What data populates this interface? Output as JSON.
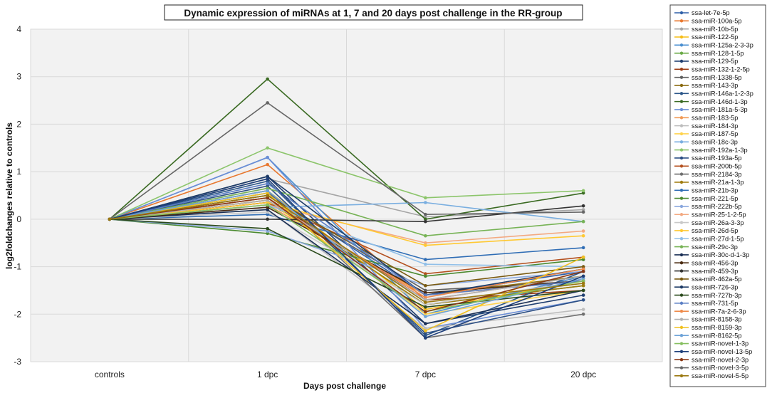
{
  "chart_data": {
    "type": "line",
    "title": "Dynamic expression of miRNAs at 1, 7 and 20 days post challenge in the RR-group",
    "xlabel": "Days post challenge",
    "ylabel": "log2foldchanges relative to controls",
    "categories": [
      "controls",
      "1 dpc",
      "7 dpc",
      "20 dpc"
    ],
    "ylim": [
      -3,
      4
    ],
    "yticks": [
      -3,
      -2,
      -1,
      0,
      1,
      2,
      3,
      4
    ],
    "grid": true,
    "legend_position": "right",
    "series": [
      {
        "name": "ssa-let-7e-5p",
        "color": "#2e5fa8",
        "values": [
          0,
          0.55,
          -1.6,
          -1.1
        ]
      },
      {
        "name": "ssa-miR-100a-5p",
        "color": "#e8782f",
        "values": [
          0,
          1.15,
          -1.7,
          -1.2
        ]
      },
      {
        "name": "ssa-miR-10b-5p",
        "color": "#a5a5a5",
        "values": [
          0,
          0.85,
          0.05,
          0.2
        ]
      },
      {
        "name": "ssa-miR-122-5p",
        "color": "#f6bd16",
        "values": [
          0,
          0.6,
          -1.9,
          -1.3
        ]
      },
      {
        "name": "ssa-miR-125a-2-3-3p",
        "color": "#4a8fd0",
        "values": [
          0,
          1.3,
          -2.0,
          -1.2
        ]
      },
      {
        "name": "ssa-miR-128-1-5p",
        "color": "#6aaa46",
        "values": [
          0,
          0.4,
          -1.8,
          -1.4
        ]
      },
      {
        "name": "ssa-miR-129-5p",
        "color": "#1f3e70",
        "values": [
          0,
          0.9,
          -2.2,
          -1.6
        ]
      },
      {
        "name": "ssa-miR-132-1-2-5p",
        "color": "#9c3b12",
        "values": [
          0,
          0.45,
          -1.7,
          -1.5
        ]
      },
      {
        "name": "ssa-miR-1338-5p",
        "color": "#5f5f5f",
        "values": [
          0,
          0.5,
          -1.5,
          -1.3
        ]
      },
      {
        "name": "ssa-miR-143-3p",
        "color": "#8a6a0f",
        "values": [
          0,
          0.35,
          -1.6,
          -1.2
        ]
      },
      {
        "name": "ssa-miR-146a-1-2-3p",
        "color": "#2a5588",
        "values": [
          0,
          0.8,
          -2.45,
          -1.1
        ]
      },
      {
        "name": "ssa-miR-146d-1-3p",
        "color": "#3a6a22",
        "values": [
          0,
          2.95,
          0.0,
          0.55
        ]
      },
      {
        "name": "ssa-miR-181a-5-3p",
        "color": "#6b8ed6",
        "values": [
          0,
          1.3,
          -2.3,
          -1.7
        ]
      },
      {
        "name": "ssa-miR-183-5p",
        "color": "#f19a56",
        "values": [
          0,
          0.3,
          -1.6,
          -1.3
        ]
      },
      {
        "name": "ssa-miR-184-3p",
        "color": "#bdbdbd",
        "values": [
          0,
          0.2,
          -2.3,
          -1.9
        ]
      },
      {
        "name": "ssa-miR-187-5p",
        "color": "#ffd34d",
        "values": [
          0,
          0.4,
          -2.0,
          -1.5
        ]
      },
      {
        "name": "ssa-miR-18c-3p",
        "color": "#79aee0",
        "values": [
          0,
          0.25,
          0.35,
          -0.05
        ]
      },
      {
        "name": "ssa-miR-192a-1-3p",
        "color": "#8cc56b",
        "values": [
          0,
          1.5,
          0.45,
          0.6
        ]
      },
      {
        "name": "ssa-miR-193a-5p",
        "color": "#2c4f85",
        "values": [
          0,
          0.7,
          -2.4,
          -1.7
        ]
      },
      {
        "name": "ssa-miR-200b-5p",
        "color": "#b4501f",
        "values": [
          0,
          0.35,
          -1.15,
          -0.8
        ]
      },
      {
        "name": "ssa-miR-2184-3p",
        "color": "#6e6e6e",
        "values": [
          0,
          0.6,
          -2.5,
          -2.0
        ]
      },
      {
        "name": "ssa-miR-21a-1-3p",
        "color": "#a07d10",
        "values": [
          0,
          0.4,
          -1.8,
          -1.4
        ]
      },
      {
        "name": "ssa-miR-21b-3p",
        "color": "#2f6db5",
        "values": [
          0,
          0.1,
          -0.85,
          -0.6
        ]
      },
      {
        "name": "ssa-miR-221-5p",
        "color": "#4b8a30",
        "values": [
          0,
          -0.3,
          -1.2,
          -0.85
        ]
      },
      {
        "name": "ssa-miR-222b-5p",
        "color": "#8aa8de",
        "values": [
          0,
          -0.25,
          -1.4,
          -1.1
        ]
      },
      {
        "name": "ssa-miR-25-1-2-5p",
        "color": "#f3a981",
        "values": [
          0,
          0.3,
          -0.5,
          -0.25
        ]
      },
      {
        "name": "ssa-miR-26a-3-3p",
        "color": "#c8c8c8",
        "values": [
          0,
          0.15,
          -1.8,
          -1.3
        ]
      },
      {
        "name": "ssa-miR-26d-5p",
        "color": "#ffc933",
        "values": [
          0,
          0.35,
          -0.55,
          -0.35
        ]
      },
      {
        "name": "ssa-miR-27d-1-5p",
        "color": "#90bfe8",
        "values": [
          0,
          0.3,
          -0.95,
          -1.0
        ]
      },
      {
        "name": "ssa-miR-29c-3p",
        "color": "#77b356",
        "values": [
          0,
          0.65,
          -0.35,
          -0.05
        ]
      },
      {
        "name": "ssa-miR-30c-d-1-3p",
        "color": "#1a2f55",
        "values": [
          0,
          0.2,
          -2.2,
          -1.5
        ]
      },
      {
        "name": "ssa-miR-456-3p",
        "color": "#4a2a10",
        "values": [
          0,
          0.25,
          -1.55,
          -1.3
        ]
      },
      {
        "name": "ssa-miR-459-3p",
        "color": "#333333",
        "values": [
          0,
          0.0,
          -0.05,
          0.28
        ]
      },
      {
        "name": "ssa-miR-462a-5p",
        "color": "#7a5a10",
        "values": [
          0,
          0.5,
          -1.4,
          -1.0
        ]
      },
      {
        "name": "ssa-miR-726-3p",
        "color": "#1d3b66",
        "values": [
          0,
          0.9,
          -1.6,
          -1.05
        ]
      },
      {
        "name": "ssa-miR-727b-3p",
        "color": "#2a4a1c",
        "values": [
          0,
          -0.2,
          -1.85,
          -1.5
        ]
      },
      {
        "name": "ssa-miR-731-5p",
        "color": "#5a7ec4",
        "values": [
          0,
          0.75,
          -1.6,
          -1.3
        ]
      },
      {
        "name": "ssa-miR-7a-2-6-3p",
        "color": "#ee8a4a",
        "values": [
          0,
          0.4,
          -1.65,
          -1.05
        ]
      },
      {
        "name": "ssa-miR-8158-3p",
        "color": "#b0b0b0",
        "values": [
          0,
          0.4,
          -1.7,
          -1.2
        ]
      },
      {
        "name": "ssa-miR-8159-3p",
        "color": "#f0c020",
        "values": [
          0,
          0.55,
          -2.35,
          -0.8
        ]
      },
      {
        "name": "ssa-miR-8162-5p",
        "color": "#6ea3d8",
        "values": [
          0,
          0.6,
          -2.05,
          -1.25
        ]
      },
      {
        "name": "ssa-miR-novel-1-3p",
        "color": "#86bf60",
        "values": [
          0,
          0.3,
          -1.95,
          -1.3
        ]
      },
      {
        "name": "ssa-miR-novel-13-5p",
        "color": "#1e3f7a",
        "values": [
          0,
          0.85,
          -2.5,
          -1.2
        ]
      },
      {
        "name": "ssa-miR-novel-2-3p",
        "color": "#8a3814",
        "values": [
          0,
          0.45,
          -1.95,
          -1.1
        ]
      },
      {
        "name": "ssa-miR-novel-3-5p",
        "color": "#666666",
        "values": [
          0,
          2.45,
          0.1,
          0.15
        ]
      },
      {
        "name": "ssa-miR-novel-5-5p",
        "color": "#9a7810",
        "values": [
          0,
          0.5,
          -1.75,
          -1.35
        ]
      }
    ]
  }
}
